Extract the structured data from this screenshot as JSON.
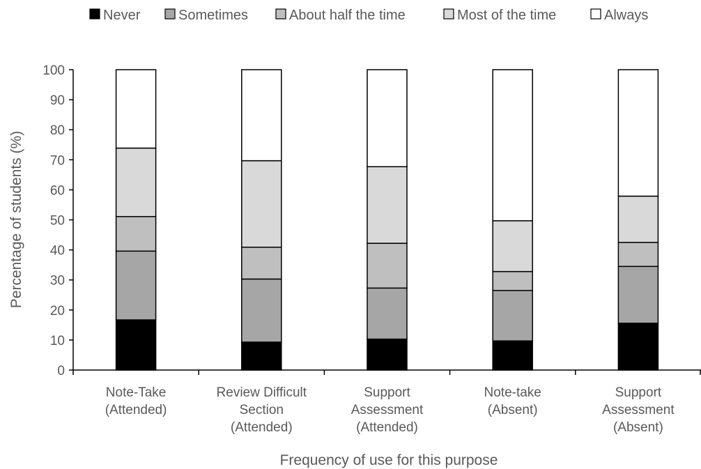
{
  "chart_data": {
    "type": "bar",
    "stacked": true,
    "title": "",
    "xlabel": "Frequency of use for this purpose",
    "ylabel": "Percentage of students (%)",
    "ylim": [
      0,
      100
    ],
    "ytick_step": 10,
    "grid": false,
    "legend_position": "top",
    "categories": [
      [
        "Note-Take",
        "(Attended)"
      ],
      [
        "Review Difficult",
        "Section",
        "(Attended)"
      ],
      [
        "Support",
        "Assessment",
        "(Attended)"
      ],
      [
        "Note-take",
        "(Absent)"
      ],
      [
        "Support",
        "Assessment",
        "(Absent)"
      ]
    ],
    "series": [
      {
        "name": "Never",
        "color": "#000000",
        "values": [
          16.7,
          9.3,
          10.3,
          9.7,
          15.6
        ]
      },
      {
        "name": "Sometimes",
        "color": "#a6a6a6",
        "values": [
          22.9,
          21.0,
          17.0,
          16.8,
          18.9
        ]
      },
      {
        "name": "About half the time",
        "color": "#bfbfbf",
        "values": [
          11.5,
          10.6,
          14.9,
          6.3,
          8.0
        ]
      },
      {
        "name": "Most of the time",
        "color": "#d9d9d9",
        "values": [
          22.8,
          28.8,
          25.5,
          16.9,
          15.4
        ]
      },
      {
        "name": "Always",
        "color": "#ffffff",
        "values": [
          26.1,
          30.3,
          32.3,
          50.3,
          42.1
        ]
      }
    ]
  }
}
